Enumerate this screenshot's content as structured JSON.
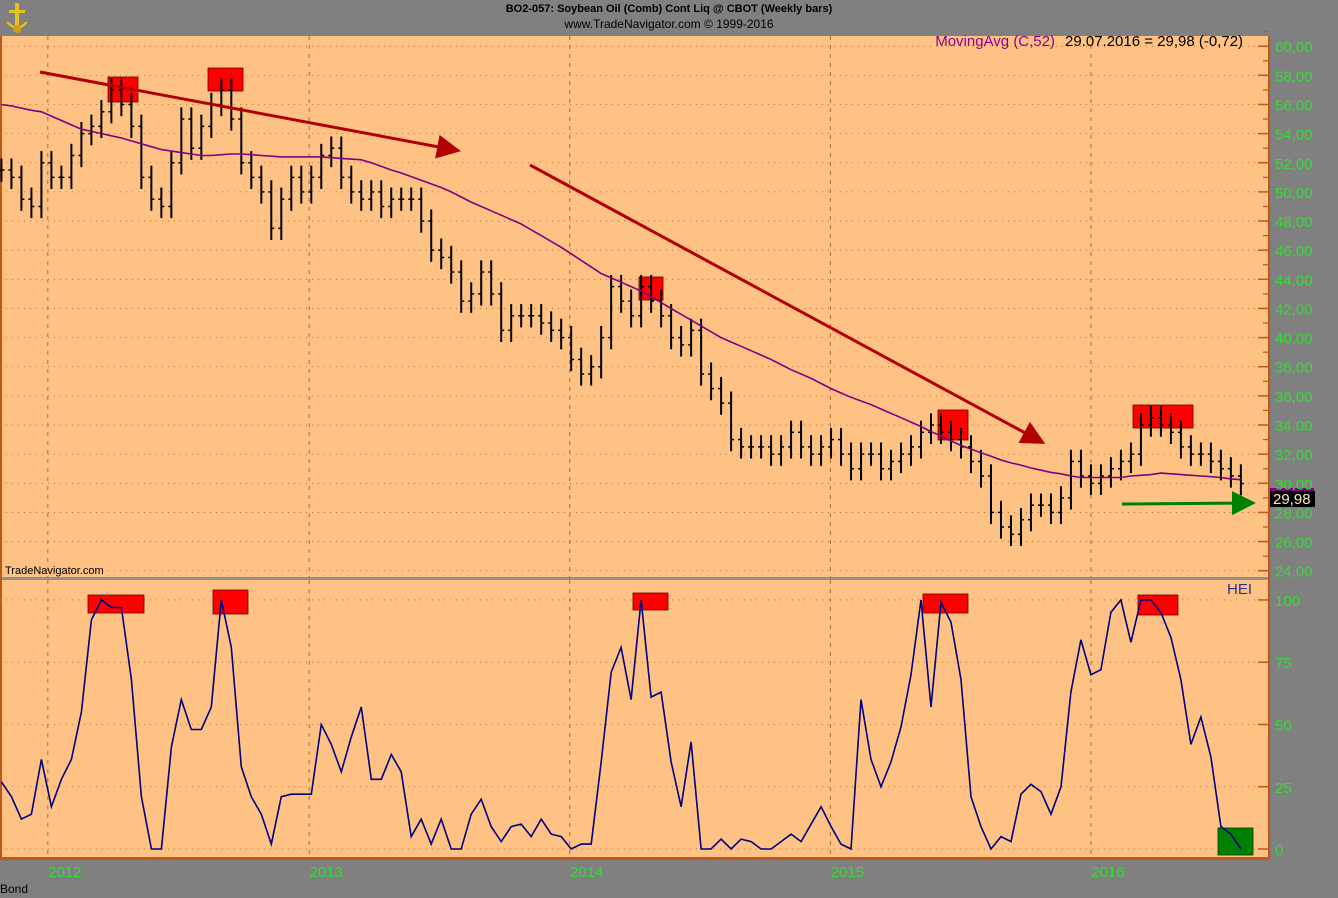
{
  "header": {
    "title": "BO2-057:  Soybean Oil (Comb) Cont Liq @ CBOT  (Weekly bars)",
    "subtitle": "www.TradeNavigator.com © 1999-2016"
  },
  "footer": {
    "symbol_label": "Bond"
  },
  "watermark": "TradeNavigator.com",
  "colors": {
    "background": "#FFC285",
    "axis_bg": "#808080",
    "axis_text": "#33DD33",
    "bars": "#000000",
    "moving_avg": "#800080",
    "hei": "#000080",
    "trend_arrow": "#B00000",
    "flat_arrow": "#008000",
    "top_marker": "#FF0000",
    "bottom_marker": "#008000"
  },
  "chart_data": [
    {
      "type": "ohlc",
      "legend": {
        "indicator": "MovingAvg (C,52)",
        "readout": "29.07.2016 = 29,98 (-0,72)"
      },
      "last_price_tag": "29,98",
      "ylim": [
        23.5,
        60.7
      ],
      "xlim": [
        "2011-10-26",
        "2016-09-05"
      ],
      "yticks": [
        "24,00",
        "26,00",
        "28,00",
        "30,00",
        "32,00",
        "34,00",
        "36,00",
        "38,00",
        "40,00",
        "42,00",
        "44,00",
        "46,00",
        "48,00",
        "50,00",
        "52,00",
        "54,00",
        "56,00",
        "58,00",
        "60,00"
      ],
      "xticks": [
        "2012",
        "2013",
        "2014",
        "2015",
        "2016"
      ],
      "grid": true,
      "dates": [
        "2011-10-28",
        "2011-11-11",
        "2011-11-25",
        "2011-12-09",
        "2011-12-23",
        "2012-01-06",
        "2012-01-20",
        "2012-02-03",
        "2012-02-17",
        "2012-03-02",
        "2012-03-16",
        "2012-03-30",
        "2012-04-13",
        "2012-04-27",
        "2012-05-11",
        "2012-05-25",
        "2012-06-08",
        "2012-06-22",
        "2012-07-06",
        "2012-07-20",
        "2012-08-03",
        "2012-08-17",
        "2012-08-31",
        "2012-09-14",
        "2012-09-28",
        "2012-10-12",
        "2012-10-26",
        "2012-11-09",
        "2012-11-23",
        "2012-12-07",
        "2012-12-21",
        "2013-01-04",
        "2013-01-18",
        "2013-02-01",
        "2013-02-15",
        "2013-03-01",
        "2013-03-15",
        "2013-03-29",
        "2013-04-12",
        "2013-04-26",
        "2013-05-10",
        "2013-05-24",
        "2013-06-07",
        "2013-06-21",
        "2013-07-05",
        "2013-07-19",
        "2013-08-02",
        "2013-08-16",
        "2013-08-30",
        "2013-09-13",
        "2013-09-27",
        "2013-10-11",
        "2013-10-25",
        "2013-11-08",
        "2013-11-22",
        "2013-12-06",
        "2013-12-20",
        "2014-01-03",
        "2014-01-17",
        "2014-01-31",
        "2014-02-14",
        "2014-02-28",
        "2014-03-14",
        "2014-03-28",
        "2014-04-11",
        "2014-04-25",
        "2014-05-09",
        "2014-05-23",
        "2014-06-06",
        "2014-06-20",
        "2014-07-04",
        "2014-07-18",
        "2014-08-01",
        "2014-08-15",
        "2014-08-29",
        "2014-09-12",
        "2014-09-26",
        "2014-10-10",
        "2014-10-24",
        "2014-11-07",
        "2014-11-21",
        "2014-12-05",
        "2014-12-19",
        "2015-01-02",
        "2015-01-16",
        "2015-01-30",
        "2015-02-13",
        "2015-02-27",
        "2015-03-13",
        "2015-03-27",
        "2015-04-10",
        "2015-04-24",
        "2015-05-08",
        "2015-05-22",
        "2015-06-05",
        "2015-06-19",
        "2015-07-03",
        "2015-07-17",
        "2015-07-31",
        "2015-08-14",
        "2015-08-28",
        "2015-09-11",
        "2015-09-25",
        "2015-10-09",
        "2015-10-23",
        "2015-11-06",
        "2015-11-20",
        "2015-12-04",
        "2015-12-18",
        "2016-01-01",
        "2016-01-15",
        "2016-01-29",
        "2016-02-12",
        "2016-02-26",
        "2016-03-11",
        "2016-03-25",
        "2016-04-08",
        "2016-04-22",
        "2016-05-06",
        "2016-05-20",
        "2016-06-03",
        "2016-06-17",
        "2016-07-01",
        "2016-07-15",
        "2016-07-29"
      ],
      "close": [
        51.5,
        51,
        49.5,
        49,
        52,
        51,
        51,
        52.5,
        54,
        54.5,
        55.5,
        57,
        56,
        54.5,
        51,
        49.5,
        49,
        52,
        55,
        53,
        54.5,
        56,
        57,
        55,
        52,
        51,
        50,
        47.5,
        49.5,
        51,
        50,
        51,
        52.5,
        53,
        51,
        50,
        49.5,
        50,
        49,
        49.5,
        49.5,
        49.5,
        48,
        46,
        45.5,
        44.5,
        42.5,
        43,
        44.5,
        43,
        40.5,
        41.5,
        41.5,
        41.5,
        41,
        40.5,
        40,
        38.5,
        37.5,
        38,
        40,
        43.5,
        42.5,
        41.5,
        43.5,
        42.5,
        41.5,
        40,
        39.5,
        40.5,
        37.5,
        36.5,
        35.5,
        33,
        32.5,
        32.5,
        32.5,
        32,
        32.5,
        33.5,
        32.5,
        32,
        32.5,
        33,
        32,
        31,
        32,
        32,
        31,
        31.5,
        32,
        32.5,
        33.5,
        34,
        33.5,
        33,
        32.5,
        31.5,
        30.5,
        28,
        27,
        26.5,
        27.5,
        28.5,
        28.5,
        28,
        29,
        31.5,
        30.5,
        30,
        30.5,
        31,
        31.5,
        32,
        34,
        34.5,
        34,
        33.5,
        32.5,
        32,
        32,
        31.5,
        31,
        30.5,
        29.98
      ],
      "moving_avg": [
        56,
        55.9,
        55.75,
        55.6,
        55.5,
        55.2,
        54.9,
        54.6,
        54.3,
        54.15,
        54,
        53.85,
        53.7,
        53.5,
        53.3,
        53.1,
        52.9,
        52.8,
        52.7,
        52.6,
        52.5,
        52.5,
        52.55,
        52.6,
        52.6,
        52.55,
        52.5,
        52.45,
        52.4,
        52.4,
        52.4,
        52.4,
        52.4,
        52.35,
        52.3,
        52.25,
        52.2,
        52,
        51.75,
        51.5,
        51.3,
        51.05,
        50.8,
        50.55,
        50.3,
        50,
        49.65,
        49.3,
        49,
        48.7,
        48.4,
        48.1,
        47.8,
        47.4,
        47,
        46.6,
        46.2,
        45.75,
        45.3,
        44.85,
        44.4,
        44.1,
        43.8,
        43.5,
        43.2,
        42.8,
        42.4,
        42,
        41.6,
        41.2,
        40.8,
        40.4,
        40,
        39.7,
        39.4,
        39.1,
        38.8,
        38.5,
        38.15,
        37.8,
        37.5,
        37.2,
        36.85,
        36.5,
        36.2,
        35.9,
        35.65,
        35.4,
        35.1,
        34.8,
        34.5,
        34.2,
        33.9,
        33.55,
        33.25,
        32.9,
        32.6,
        32.35,
        32.1,
        31.85,
        31.6,
        31.4,
        31.25,
        31.05,
        30.9,
        30.75,
        30.65,
        30.5,
        30.4,
        30.4,
        30.4,
        30.4,
        30.4,
        30.5,
        30.55,
        30.6,
        30.7,
        30.65,
        30.6,
        30.55,
        30.5,
        30.45,
        30.4,
        30.3,
        30.25
      ]
    },
    {
      "type": "line",
      "legend": {
        "indicator": "HEI"
      },
      "ylim": [
        -3.6,
        108
      ],
      "yticks": [
        "0",
        "25",
        "50",
        "75",
        "100"
      ],
      "grid": true,
      "values": [
        27,
        21,
        12,
        14,
        36,
        17,
        28,
        36,
        55,
        92,
        100,
        97,
        97,
        68,
        21,
        0,
        0,
        41,
        60,
        48,
        48,
        57,
        100,
        81,
        33,
        21,
        14,
        2,
        21,
        22,
        22,
        22,
        50,
        42,
        31,
        45,
        57,
        28,
        28,
        38,
        31,
        5,
        12,
        2,
        12,
        0,
        0,
        14,
        20,
        9,
        3,
        9,
        10,
        5,
        12,
        6,
        5,
        0,
        2,
        2,
        35,
        71,
        81,
        60,
        100,
        61,
        63,
        35,
        17,
        43,
        0,
        0,
        4,
        0,
        4,
        3,
        0,
        0,
        3,
        6,
        3,
        10,
        17,
        9,
        2,
        0,
        60,
        36,
        25,
        35,
        49,
        70,
        100,
        57,
        99,
        91,
        68,
        21,
        9,
        0,
        5,
        3,
        22,
        26,
        23,
        14,
        25,
        63,
        84,
        70,
        72,
        95,
        100,
        83,
        100,
        100,
        95,
        85,
        68,
        42,
        53,
        37,
        9,
        6,
        0
      ]
    }
  ]
}
